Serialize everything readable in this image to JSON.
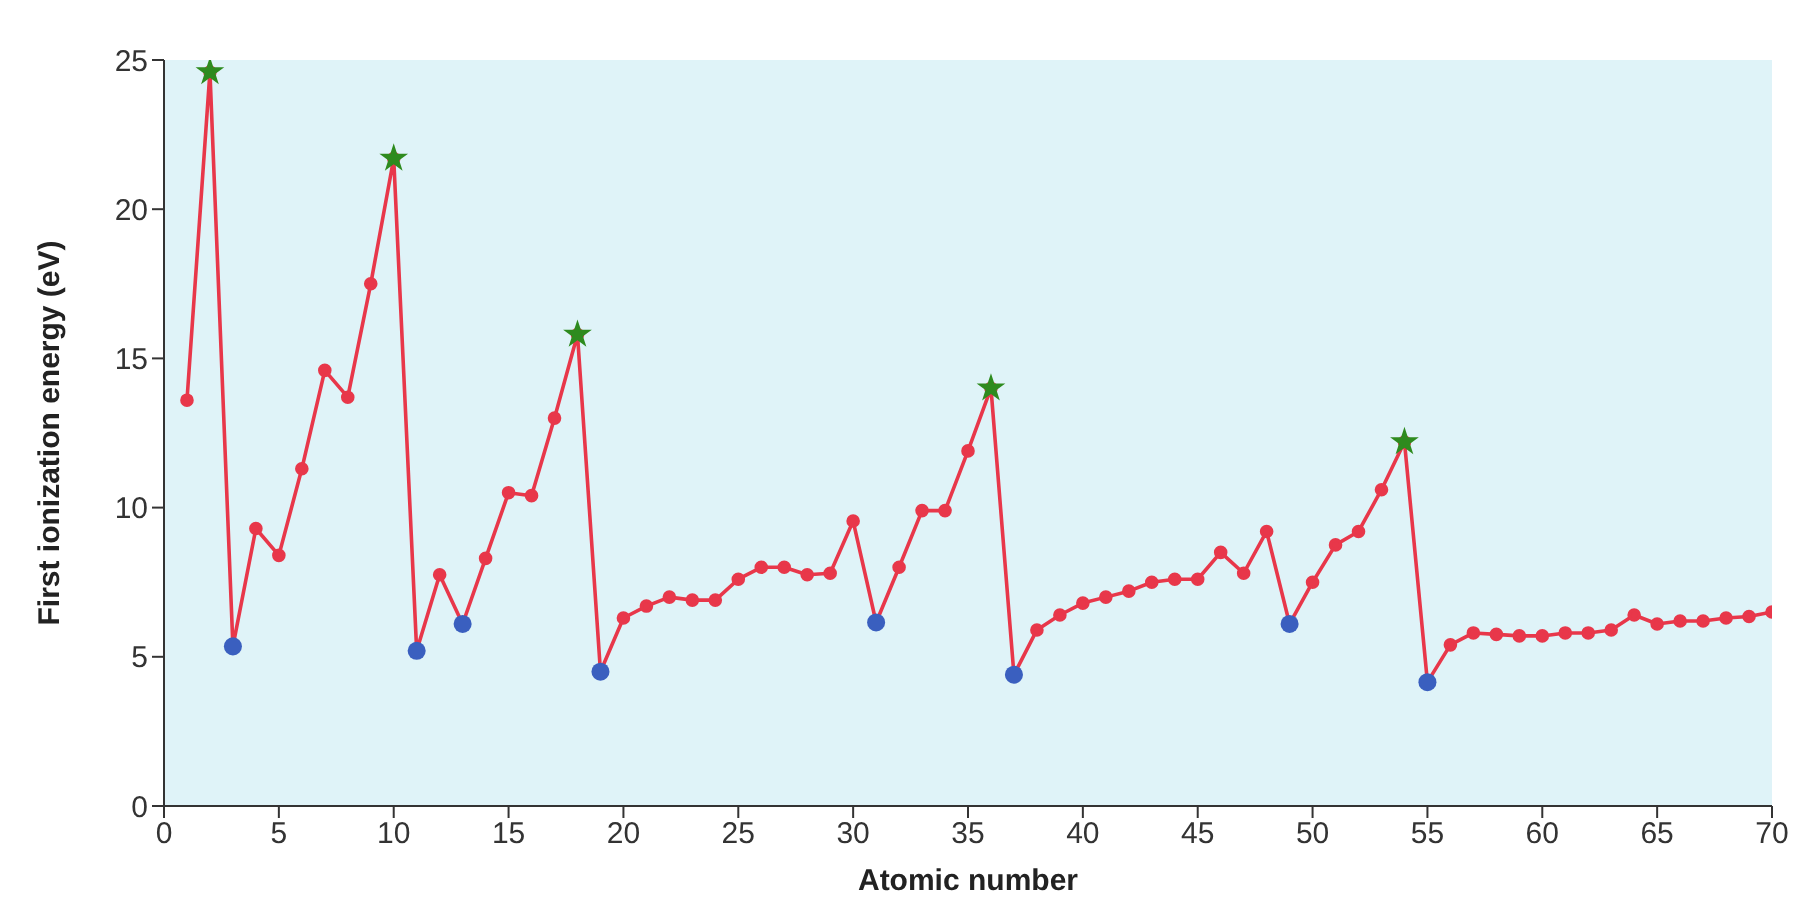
{
  "chart_data": {
    "type": "line",
    "xlabel": "Atomic number",
    "ylabel": "First ionization energy (eV)",
    "xlim": [
      0,
      70
    ],
    "ylim": [
      0,
      25
    ],
    "xticks": [
      0,
      5,
      10,
      15,
      20,
      25,
      30,
      35,
      40,
      45,
      50,
      55,
      60,
      65,
      70
    ],
    "yticks": [
      0,
      5,
      10,
      15,
      20,
      25
    ],
    "grid": false,
    "legend": false,
    "marker": "circle",
    "line_style": "solid",
    "series": [
      {
        "color": "#e8374a",
        "x": [
          1,
          2,
          3,
          4,
          5,
          6,
          7,
          8,
          9,
          10,
          11,
          12,
          13,
          14,
          15,
          16,
          17,
          18,
          19,
          20,
          21,
          22,
          23,
          24,
          25,
          26,
          27,
          28,
          29,
          30,
          31,
          32,
          33,
          34,
          35,
          36,
          37,
          38,
          39,
          40,
          41,
          42,
          43,
          44,
          45,
          46,
          47,
          48,
          49,
          50,
          51,
          52,
          53,
          54,
          55,
          56,
          57,
          58,
          59,
          60,
          61,
          62,
          63,
          64,
          65,
          66,
          67,
          68,
          69,
          70
        ],
        "values": [
          13.6,
          24.6,
          5.35,
          9.3,
          8.4,
          11.3,
          14.6,
          13.7,
          17.5,
          21.7,
          5.2,
          7.75,
          6.1,
          8.3,
          10.5,
          10.4,
          13.0,
          15.8,
          4.5,
          6.3,
          6.7,
          7.0,
          6.9,
          6.9,
          7.6,
          8.0,
          8.0,
          7.75,
          7.8,
          9.55,
          6.15,
          8.0,
          9.9,
          9.9,
          11.9,
          14.0,
          4.4,
          5.9,
          6.4,
          6.8,
          7.0,
          7.2,
          7.5,
          7.6,
          7.6,
          8.5,
          7.8,
          9.2,
          6.1,
          7.5,
          8.75,
          9.2,
          10.6,
          12.2,
          4.15,
          5.4,
          5.8,
          5.75,
          5.7,
          5.7,
          5.8,
          5.8,
          5.9,
          6.4,
          6.1,
          6.2,
          6.2,
          6.3,
          6.35,
          6.5
        ]
      },
      {
        "type": "scatter",
        "color": "#2e8b1e",
        "marker": "star",
        "x": [
          2,
          10,
          18,
          36,
          54
        ],
        "values": [
          24.6,
          21.7,
          15.8,
          14.0,
          12.2
        ]
      },
      {
        "type": "scatter",
        "color": "#3a5fbf",
        "marker": "circle",
        "x": [
          3,
          11,
          13,
          19,
          31,
          37,
          49,
          55
        ],
        "values": [
          5.35,
          5.2,
          6.1,
          4.5,
          6.15,
          4.4,
          6.1,
          4.15
        ]
      }
    ]
  }
}
